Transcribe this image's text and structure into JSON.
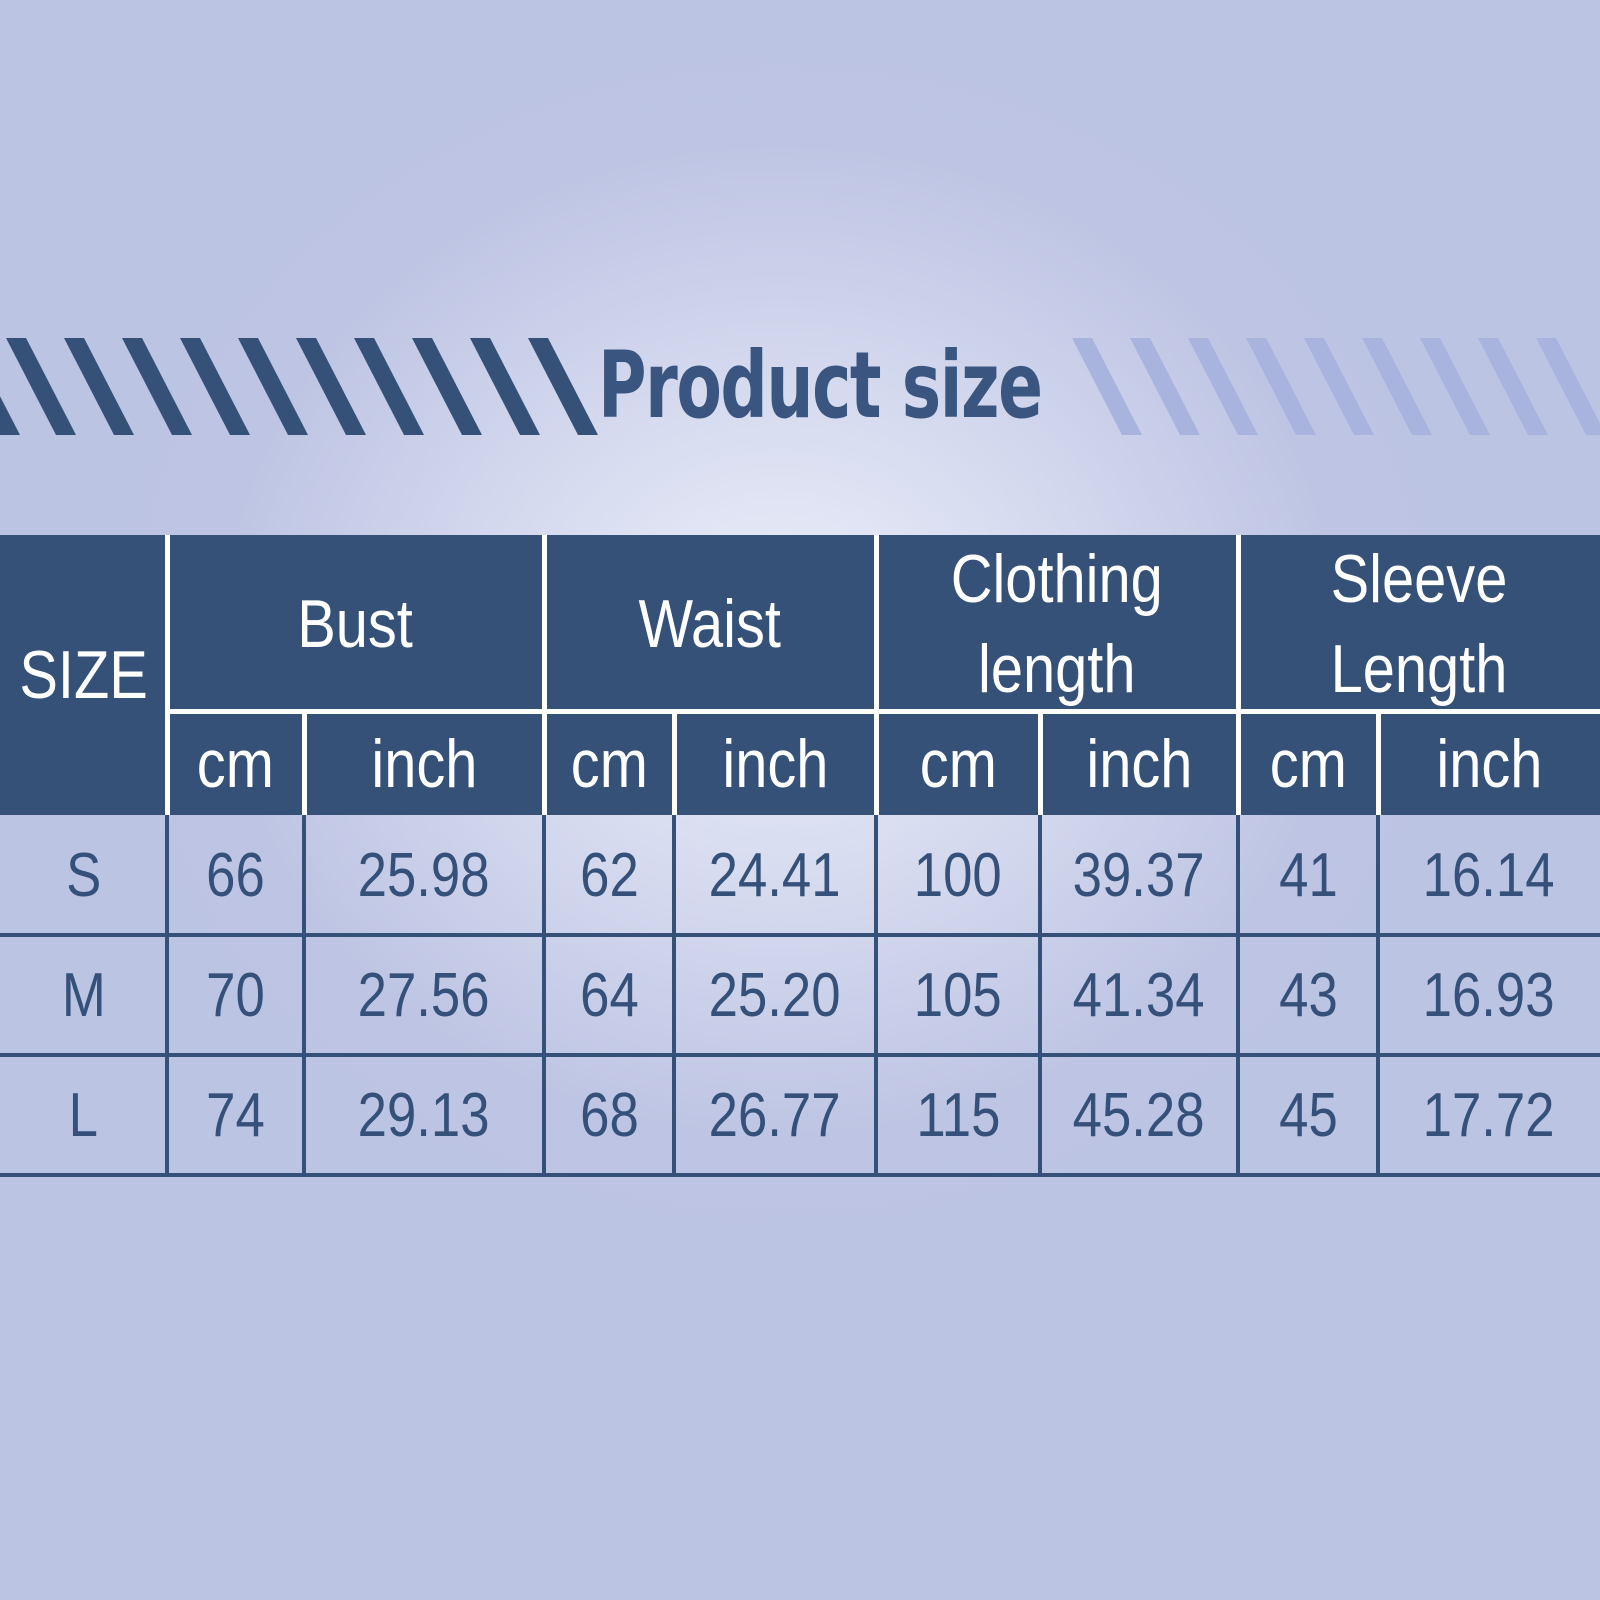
{
  "title": "Product size",
  "colors": {
    "header_bg": "#355178",
    "text": "#365179",
    "stripe_dark": "#355178",
    "stripe_light": "#a9b4de"
  },
  "table": {
    "size_header": "SIZE",
    "groups": [
      "Bust",
      "Waist",
      "Clothing length",
      "Sleeve Length"
    ],
    "units": [
      "cm",
      "inch",
      "cm",
      "inch",
      "cm",
      "inch",
      "cm",
      "inch"
    ],
    "rows": [
      {
        "size": "S",
        "values": [
          "66",
          "25.98",
          "62",
          "24.41",
          "100",
          "39.37",
          "41",
          "16.14"
        ]
      },
      {
        "size": "M",
        "values": [
          "70",
          "27.56",
          "64",
          "25.20",
          "105",
          "41.34",
          "43",
          "16.93"
        ]
      },
      {
        "size": "L",
        "values": [
          "74",
          "29.13",
          "68",
          "26.77",
          "115",
          "45.28",
          "45",
          "17.72"
        ]
      }
    ]
  }
}
